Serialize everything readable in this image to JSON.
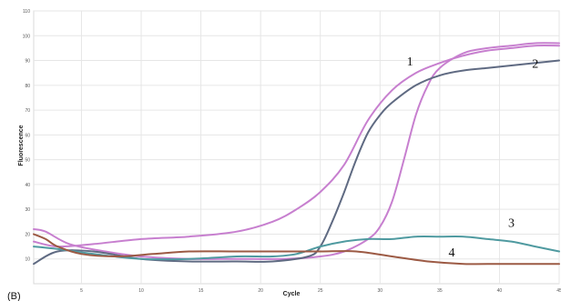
{
  "panel_label": "(B)",
  "chart_data": {
    "type": "line",
    "title": "",
    "xlabel": "Cycle",
    "ylabel": "Fluorescence",
    "xlim": [
      1,
      45
    ],
    "ylim": [
      0,
      110
    ],
    "x_ticks": [
      "5",
      "10",
      "15",
      "20",
      "25",
      "30",
      "35",
      "40",
      "45"
    ],
    "x_tick_values": [
      5,
      10,
      15,
      20,
      25,
      30,
      35,
      40,
      45
    ],
    "y_ticks": [
      "10",
      "20",
      "30",
      "40",
      "50",
      "60",
      "70",
      "80",
      "90",
      "100",
      "110"
    ],
    "y_tick_values": [
      10,
      20,
      30,
      40,
      50,
      60,
      70,
      80,
      90,
      100,
      110
    ],
    "grid": true,
    "series": [
      {
        "name": "1",
        "color": "#c77fcf",
        "x": [
          1,
          3,
          6,
          10,
          14,
          18,
          21,
          23,
          25,
          27,
          29,
          31,
          33,
          35,
          37,
          39,
          41,
          43,
          45
        ],
        "y": [
          17,
          15,
          16,
          18,
          19,
          21,
          25,
          30,
          37,
          48,
          66,
          78,
          85,
          89,
          92,
          94,
          95,
          96,
          96
        ]
      },
      {
        "name": "",
        "color": "#c77fcf",
        "x": [
          1,
          2,
          4,
          7,
          10,
          14,
          18,
          22,
          25,
          27,
          29,
          30,
          31,
          32,
          33,
          34,
          35,
          37,
          39,
          41,
          43,
          45
        ],
        "y": [
          22,
          21,
          16,
          13,
          11,
          10,
          10,
          10,
          11,
          13,
          18,
          23,
          33,
          50,
          68,
          80,
          87,
          93,
          95,
          96,
          97,
          97
        ]
      },
      {
        "name": "2",
        "color": "#5f6a82",
        "x": [
          1,
          3,
          6,
          10,
          14,
          18,
          21,
          24,
          25,
          26,
          27,
          28,
          29,
          30,
          31,
          33,
          35,
          37,
          39,
          41,
          43,
          45
        ],
        "y": [
          8,
          13,
          13,
          10,
          9,
          9,
          9,
          11,
          15,
          25,
          37,
          50,
          61,
          68,
          73,
          80,
          84,
          86,
          87,
          88,
          89,
          90
        ]
      },
      {
        "name": "3",
        "color": "#4f9aa0",
        "x": [
          1,
          3,
          6,
          10,
          14,
          18,
          21,
          23,
          25,
          27,
          29,
          31,
          33,
          35,
          37,
          39,
          41,
          43,
          45
        ],
        "y": [
          15,
          14,
          12,
          10,
          10,
          11,
          11,
          12,
          15,
          17,
          18,
          18,
          19,
          19,
          19,
          18,
          17,
          15,
          13
        ]
      },
      {
        "name": "4",
        "color": "#9c5a44",
        "x": [
          1,
          2,
          3,
          5,
          8,
          11,
          14,
          18,
          22,
          25,
          28,
          31,
          34,
          37,
          40,
          43,
          45
        ],
        "y": [
          20,
          18,
          15,
          12,
          11,
          12,
          13,
          13,
          13,
          13,
          13,
          11,
          9,
          8,
          8,
          8,
          8
        ]
      }
    ]
  }
}
